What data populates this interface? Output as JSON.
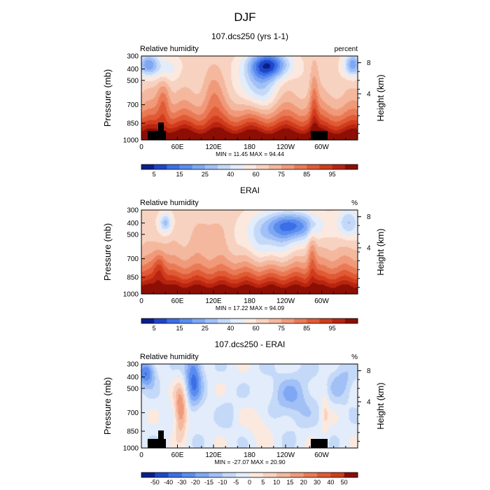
{
  "figure": {
    "title": "DJF"
  },
  "chart_data": [
    {
      "type": "heatmap",
      "title": "107.dcs250 (yrs 1-1)",
      "variable_label": "Relative humidity",
      "units_label": "percent",
      "xlabel": "",
      "ylabel": "Pressure (mb)",
      "ylabel_right": "Height (km)",
      "x_ticks": [
        "0",
        "60E",
        "120E",
        "180",
        "120W",
        "60W"
      ],
      "y_ticks": [
        "300",
        "400",
        "500",
        "700",
        "850",
        "1000"
      ],
      "y_ticks_right": [
        "8",
        "4"
      ],
      "stats_text": "MIN =   11.45   MAX =   94.44",
      "min": 11.45,
      "max": 94.44,
      "colorbar_labels": [
        "5",
        "15",
        "25",
        "40",
        "60",
        "75",
        "85",
        "95"
      ],
      "colorbar_colors": [
        "#0a1e8c",
        "#1e46c8",
        "#3c6ee6",
        "#5a8cf0",
        "#7ea8f4",
        "#a0c0f6",
        "#c4d8f8",
        "#e2ecfa",
        "#fbe9e0",
        "#f8d2c0",
        "#f4b89e",
        "#f09a7a",
        "#ea7a56",
        "#e05a36",
        "#d03c1c",
        "#b82410",
        "#8c0e04"
      ]
    },
    {
      "type": "heatmap",
      "title": "ERAI",
      "variable_label": "Relative humidity",
      "units_label": "%",
      "xlabel": "",
      "ylabel": "Pressure (mb)",
      "ylabel_right": "Height (km)",
      "x_ticks": [
        "0",
        "60E",
        "120E",
        "180",
        "120W",
        "60W"
      ],
      "y_ticks": [
        "300",
        "400",
        "500",
        "700",
        "850",
        "1000"
      ],
      "y_ticks_right": [
        "8",
        "4"
      ],
      "stats_text": "MIN =   17.22   MAX =   94.09",
      "min": 17.22,
      "max": 94.09,
      "colorbar_labels": [
        "5",
        "15",
        "25",
        "40",
        "60",
        "75",
        "85",
        "95"
      ],
      "colorbar_colors": [
        "#0a1e8c",
        "#1e46c8",
        "#3c6ee6",
        "#5a8cf0",
        "#7ea8f4",
        "#a0c0f6",
        "#c4d8f8",
        "#e2ecfa",
        "#fbe9e0",
        "#f8d2c0",
        "#f4b89e",
        "#f09a7a",
        "#ea7a56",
        "#e05a36",
        "#d03c1c",
        "#b82410",
        "#8c0e04"
      ]
    },
    {
      "type": "heatmap",
      "title": "107.dcs250 - ERAI",
      "variable_label": "Relative humidity",
      "units_label": "%",
      "xlabel": "",
      "ylabel": "Pressure (mb)",
      "ylabel_right": "Height (km)",
      "x_ticks": [
        "0",
        "60E",
        "120E",
        "180",
        "120W",
        "60W"
      ],
      "y_ticks": [
        "300",
        "400",
        "500",
        "700",
        "850",
        "1000"
      ],
      "y_ticks_right": [
        "8",
        "4"
      ],
      "stats_text": "MIN =  -27.07   MAX =   20.90",
      "min": -27.07,
      "max": 20.9,
      "colorbar_labels": [
        "-50",
        "-40",
        "-30",
        "-20",
        "-15",
        "-10",
        "-5",
        "0",
        "5",
        "10",
        "15",
        "20",
        "30",
        "40",
        "50"
      ],
      "colorbar_colors": [
        "#0a1e8c",
        "#1e46c8",
        "#3c6ee6",
        "#5a8cf0",
        "#7ea8f4",
        "#a0c0f6",
        "#c4d8f8",
        "#e2ecfa",
        "#fbe9e0",
        "#f8d2c0",
        "#f4b89e",
        "#f09a7a",
        "#ea7a56",
        "#e05a36",
        "#d03c1c",
        "#8c0e04"
      ]
    }
  ]
}
